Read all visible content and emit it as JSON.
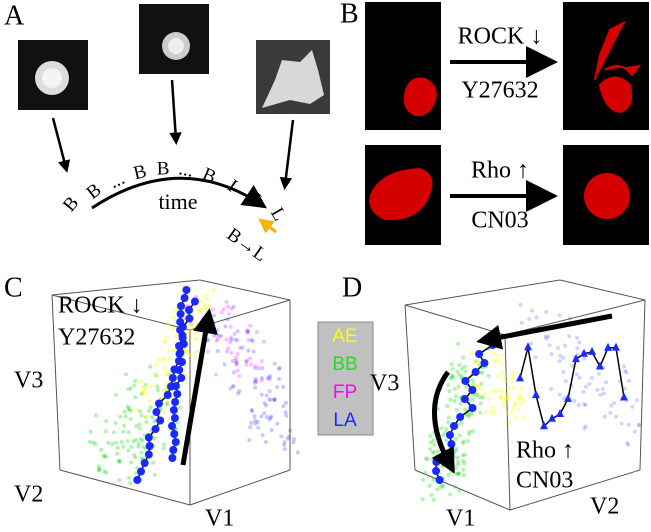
{
  "panel_a": {
    "label": "A",
    "sequence": [
      "B",
      "B",
      "...",
      "B",
      "B",
      "...",
      "B",
      "I",
      "I",
      "L"
    ],
    "time_label": "time",
    "transition": "B→L"
  },
  "panel_b": {
    "label": "B",
    "top_treatment": "ROCK ↓",
    "top_drug": "Y27632",
    "bottom_treatment": "Rho ↑",
    "bottom_drug": "CN03"
  },
  "panel_c": {
    "label": "C",
    "treatment": "ROCK ↓",
    "drug": "Y27632",
    "axes": [
      "V1",
      "V2",
      "V3"
    ]
  },
  "legend": [
    {
      "label": "AE",
      "color": "#ffff00"
    },
    {
      "label": "BB",
      "color": "#22dd22"
    },
    {
      "label": "FP",
      "color": "#ff00ff"
    },
    {
      "label": "LA",
      "color": "#1a2aff"
    }
  ],
  "panel_d": {
    "label": "D",
    "treatment": "Rho ↑",
    "drug": "CN03",
    "axes": [
      "V1",
      "V2",
      "V3"
    ]
  }
}
